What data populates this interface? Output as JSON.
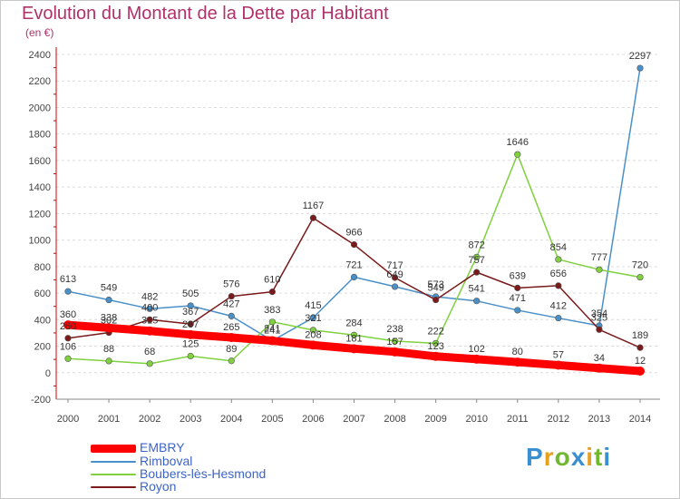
{
  "title": "Evolution du Montant de la Dette par Habitant",
  "subtitle": "(en €)",
  "logo": "Proxiti",
  "chart_data": {
    "type": "line",
    "title": "Evolution du Montant de la Dette par Habitant",
    "subtitle": "(en €)",
    "categories": [
      "2000",
      "2001",
      "2002",
      "2003",
      "2004",
      "2005",
      "2006",
      "2007",
      "2008",
      "2009",
      "2010",
      "2011",
      "2012",
      "2013",
      "2014"
    ],
    "ylim": [
      -200,
      2400
    ],
    "yticks": [
      "-200",
      "0",
      "200",
      "400",
      "600",
      "800",
      "1000",
      "1200",
      "1400",
      "1600",
      "1800",
      "2000",
      "2200",
      "2400"
    ],
    "grid": true,
    "legend_position": "bottom-left",
    "series": [
      {
        "name": "EMBRY",
        "color": "#ff0000",
        "values": [
          360,
          338,
          315,
          287,
          265,
          241,
          208,
          181,
          157,
          123,
          102,
          80,
          57,
          34,
          12
        ]
      },
      {
        "name": "Rimboval",
        "color": "#4a90c8",
        "values": [
          613,
          549,
          482,
          505,
          427,
          241,
          415,
          721,
          649,
          573,
          541,
          471,
          412,
          354,
          2297
        ]
      },
      {
        "name": "Boubers-lès-Hesmond",
        "color": "#80d040",
        "values": [
          106,
          88,
          68,
          125,
          89,
          383,
          321,
          284,
          238,
          222,
          872,
          1646,
          854,
          777,
          720
        ]
      },
      {
        "name": "Royon",
        "color": "#7a1a1a",
        "values": [
          260,
          302,
          400,
          367,
          576,
          610,
          1167,
          966,
          717,
          549,
          757,
          639,
          656,
          325,
          189
        ]
      }
    ]
  }
}
